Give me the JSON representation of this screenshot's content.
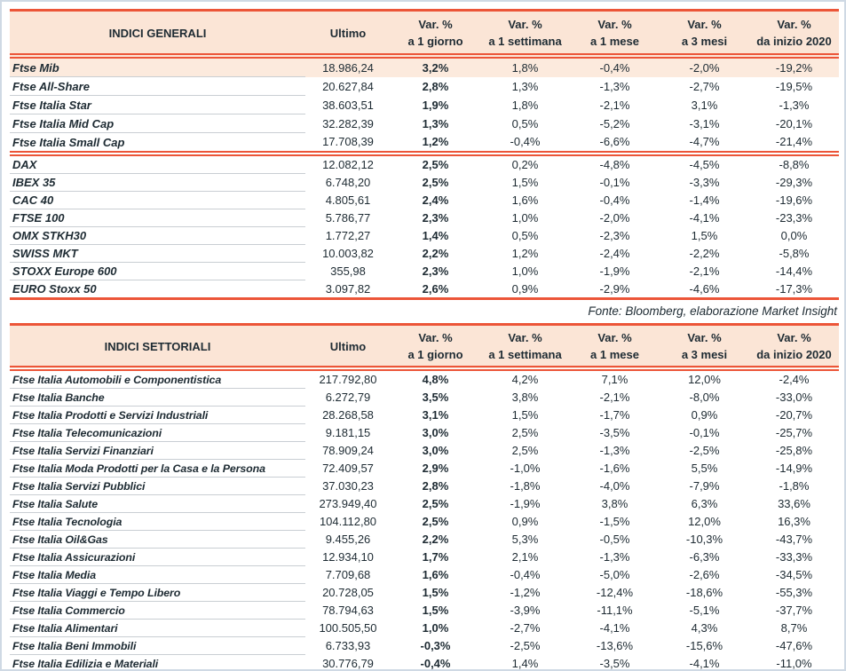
{
  "source_note": "Fonte: Bloomberg, elaborazione Market Insight",
  "colors": {
    "accent": "#ec5538",
    "header_bg": "#fbe5d6",
    "highlight_bg": "#fceadd",
    "text": "#1e2b33",
    "row_separator": "#c9ced3",
    "page_border": "#cfd9e4"
  },
  "tables": [
    {
      "title": "INDICI GENERALI",
      "headers": {
        "ultimo": "Ultimo",
        "vars": [
          [
            "Var. %",
            "a 1 giorno"
          ],
          [
            "Var. %",
            "a 1 settimana"
          ],
          [
            "Var. %",
            "a 1 mese"
          ],
          [
            "Var. %",
            "a 3 mesi"
          ],
          [
            "Var. %",
            "da inizio 2020"
          ]
        ]
      },
      "groups": [
        {
          "highlight_rows": [
            0
          ],
          "rows": [
            [
              "Ftse Mib",
              "18.986,24",
              "3,2%",
              "1,8%",
              "-0,4%",
              "-2,0%",
              "-19,2%"
            ],
            [
              "Ftse All-Share",
              "20.627,84",
              "2,8%",
              "1,3%",
              "-1,3%",
              "-2,7%",
              "-19,5%"
            ],
            [
              "Ftse Italia Star",
              "38.603,51",
              "1,9%",
              "1,8%",
              "-2,1%",
              "3,1%",
              "-1,3%"
            ],
            [
              "Ftse Italia Mid Cap",
              "32.282,39",
              "1,3%",
              "0,5%",
              "-5,2%",
              "-3,1%",
              "-20,1%"
            ],
            [
              "Ftse Italia Small Cap",
              "17.708,39",
              "1,2%",
              "-0,4%",
              "-6,6%",
              "-4,7%",
              "-21,4%"
            ]
          ]
        },
        {
          "highlight_rows": [],
          "rows": [
            [
              "DAX",
              "12.082,12",
              "2,5%",
              "0,2%",
              "-4,8%",
              "-4,5%",
              "-8,8%"
            ],
            [
              "IBEX 35",
              "6.748,20",
              "2,5%",
              "1,5%",
              "-0,1%",
              "-3,3%",
              "-29,3%"
            ],
            [
              "CAC 40",
              "4.805,61",
              "2,4%",
              "1,6%",
              "-0,4%",
              "-1,4%",
              "-19,6%"
            ],
            [
              "FTSE 100",
              "5.786,77",
              "2,3%",
              "1,0%",
              "-2,0%",
              "-4,1%",
              "-23,3%"
            ],
            [
              "OMX STKH30",
              "1.772,27",
              "1,4%",
              "0,5%",
              "-2,3%",
              "1,5%",
              "0,0%"
            ],
            [
              "SWISS MKT",
              "10.003,82",
              "2,2%",
              "1,2%",
              "-2,4%",
              "-2,2%",
              "-5,8%"
            ],
            [
              "STOXX Europe 600",
              "355,98",
              "2,3%",
              "1,0%",
              "-1,9%",
              "-2,1%",
              "-14,4%"
            ],
            [
              "EURO Stoxx 50",
              "3.097,82",
              "2,6%",
              "0,9%",
              "-2,9%",
              "-4,6%",
              "-17,3%"
            ]
          ]
        }
      ]
    },
    {
      "title": "INDICI SETTORIALI",
      "headers": {
        "ultimo": "Ultimo",
        "vars": [
          [
            "Var. %",
            "a 1 giorno"
          ],
          [
            "Var. %",
            "a 1 settimana"
          ],
          [
            "Var. %",
            "a 1 mese"
          ],
          [
            "Var. %",
            "a 3 mesi"
          ],
          [
            "Var. %",
            "da inizio 2020"
          ]
        ]
      },
      "groups": [
        {
          "highlight_rows": [],
          "rows": [
            [
              "Ftse Italia Automobili e Componentistica",
              "217.792,80",
              "4,8%",
              "4,2%",
              "7,1%",
              "12,0%",
              "-2,4%"
            ],
            [
              "Ftse Italia Banche",
              "6.272,79",
              "3,5%",
              "3,8%",
              "-2,1%",
              "-8,0%",
              "-33,0%"
            ],
            [
              "Ftse Italia Prodotti e Servizi Industriali",
              "28.268,58",
              "3,1%",
              "1,5%",
              "-1,7%",
              "0,9%",
              "-20,7%"
            ],
            [
              "Ftse Italia Telecomunicazioni",
              "9.181,15",
              "3,0%",
              "2,5%",
              "-3,5%",
              "-0,1%",
              "-25,7%"
            ],
            [
              "Ftse Italia Servizi Finanziari",
              "78.909,24",
              "3,0%",
              "2,5%",
              "-1,3%",
              "-2,5%",
              "-25,8%"
            ],
            [
              "Ftse Italia Moda Prodotti per la Casa e la Persona",
              "72.409,57",
              "2,9%",
              "-1,0%",
              "-1,6%",
              "5,5%",
              "-14,9%"
            ],
            [
              "Ftse Italia Servizi Pubblici",
              "37.030,23",
              "2,8%",
              "-1,8%",
              "-4,0%",
              "-7,9%",
              "-1,8%"
            ],
            [
              "Ftse Italia Salute",
              "273.949,40",
              "2,5%",
              "-1,9%",
              "3,8%",
              "6,3%",
              "33,6%"
            ],
            [
              "Ftse Italia Tecnologia",
              "104.112,80",
              "2,5%",
              "0,9%",
              "-1,5%",
              "12,0%",
              "16,3%"
            ],
            [
              "Ftse Italia Oil&Gas",
              "9.455,26",
              "2,2%",
              "5,3%",
              "-0,5%",
              "-10,3%",
              "-43,7%"
            ],
            [
              "Ftse Italia Assicurazioni",
              "12.934,10",
              "1,7%",
              "2,1%",
              "-1,3%",
              "-6,3%",
              "-33,3%"
            ],
            [
              "Ftse Italia Media",
              "7.709,68",
              "1,6%",
              "-0,4%",
              "-5,0%",
              "-2,6%",
              "-34,5%"
            ],
            [
              "Ftse Italia Viaggi e Tempo Libero",
              "20.728,05",
              "1,5%",
              "-1,2%",
              "-12,4%",
              "-18,6%",
              "-55,3%"
            ],
            [
              "Ftse Italia Commercio",
              "78.794,63",
              "1,5%",
              "-3,9%",
              "-11,1%",
              "-5,1%",
              "-37,7%"
            ],
            [
              "Ftse Italia Alimentari",
              "100.505,50",
              "1,0%",
              "-2,7%",
              "-4,1%",
              "4,3%",
              "8,7%"
            ],
            [
              "Ftse Italia Beni Immobili",
              "6.733,93",
              "-0,3%",
              "-2,5%",
              "-13,6%",
              "-15,6%",
              "-47,6%"
            ],
            [
              "Ftse Italia Edilizia e Materiali",
              "30.776,79",
              "-0,4%",
              "1,4%",
              "-3,5%",
              "-4,1%",
              "-11,0%"
            ]
          ]
        }
      ]
    }
  ]
}
